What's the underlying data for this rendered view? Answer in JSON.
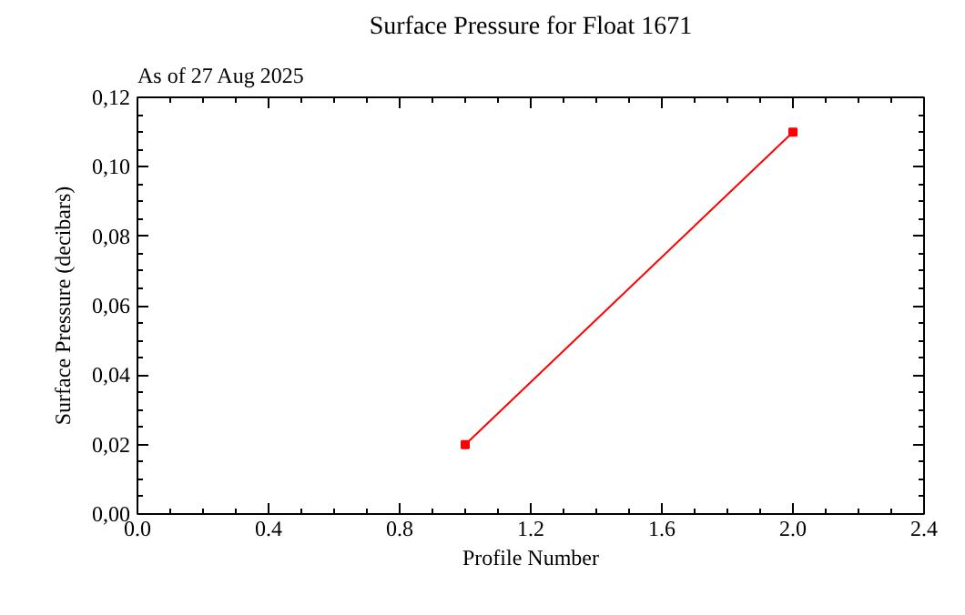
{
  "chart_data": {
    "type": "line",
    "title": "Surface Pressure for Float 1671",
    "subtitle": "As of 27 Aug 2025",
    "xlabel": "Profile Number",
    "ylabel": "Surface Pressure (decibars)",
    "x": [
      1,
      2
    ],
    "series": [
      {
        "color": "#ff0000",
        "values": [
          0.02,
          0.11
        ]
      }
    ],
    "xlim": [
      0,
      2.4
    ],
    "xticks": [
      {
        "value": 0,
        "label": "0.0"
      },
      {
        "value": 0.4,
        "label": "0.4"
      },
      {
        "value": 0.8,
        "label": "0.8"
      },
      {
        "value": 1.2,
        "label": "1.2"
      },
      {
        "value": 1.6,
        "label": "1.6"
      },
      {
        "value": 2.0,
        "label": "2.0"
      },
      {
        "value": 2.4,
        "label": "2.4"
      }
    ],
    "ylim": [
      0,
      0.12
    ],
    "yticks": [
      {
        "value": 0,
        "label": "0,00"
      },
      {
        "value": 0.02,
        "label": "0,02"
      },
      {
        "value": 0.04,
        "label": "0,04"
      },
      {
        "value": 0.06,
        "label": "0,06"
      },
      {
        "value": 0.08,
        "label": "0,08"
      },
      {
        "value": 0.1,
        "label": "0,10"
      },
      {
        "value": 0.12,
        "label": "0,12"
      }
    ],
    "marker": "square",
    "line_style": "solid",
    "grid": false
  }
}
